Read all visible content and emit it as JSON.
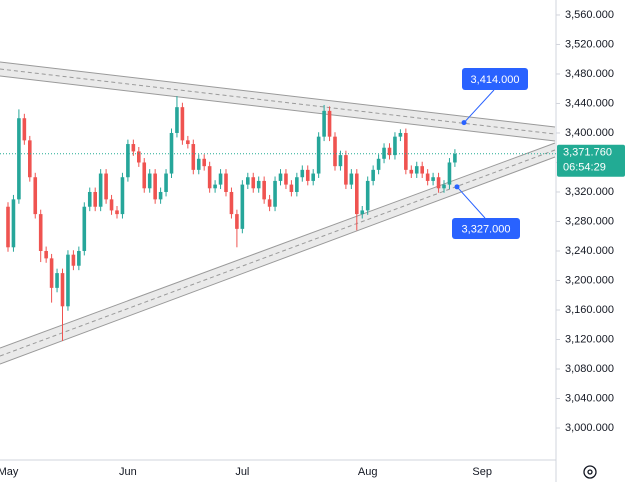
{
  "chart_data": {
    "type": "candlestick",
    "categories": [
      "May",
      null,
      null,
      null,
      null,
      null,
      null,
      null,
      null,
      null,
      null,
      null,
      null,
      null,
      null,
      null,
      null,
      null,
      null,
      null,
      null,
      null,
      "Jun",
      null,
      null,
      null,
      null,
      null,
      null,
      null,
      null,
      null,
      null,
      null,
      null,
      null,
      null,
      null,
      null,
      null,
      null,
      null,
      null,
      "Jul",
      null,
      null,
      null,
      null,
      null,
      null,
      null,
      null,
      null,
      null,
      null,
      null,
      null,
      null,
      null,
      null,
      null,
      null,
      null,
      null,
      null,
      null,
      "Aug",
      null,
      null,
      null,
      null,
      null,
      null,
      null,
      null,
      null,
      null,
      null,
      null,
      null,
      null,
      null,
      null,
      null,
      null,
      null,
      null,
      "Sep"
    ],
    "open": [
      3300,
      3245,
      3310,
      3420,
      3390,
      3340,
      3290,
      3240,
      3230,
      3190,
      3210,
      3165,
      3235,
      3220,
      3240,
      3300,
      3320,
      3300,
      3345,
      3310,
      3295,
      3290,
      3340,
      3385,
      3375,
      3360,
      3325,
      3345,
      3310,
      3320,
      3345,
      3400,
      3435,
      3390,
      3385,
      3350,
      3365,
      3355,
      3325,
      3330,
      3345,
      3320,
      3290,
      3270,
      3330,
      3340,
      3325,
      3335,
      3310,
      3300,
      3335,
      3345,
      3330,
      3320,
      3340,
      3350,
      3335,
      3345,
      3395,
      3430,
      3395,
      3355,
      3370,
      3330,
      3345,
      3290,
      3295,
      3335,
      3350,
      3365,
      3380,
      3370,
      3395,
      3400,
      3350,
      3345,
      3355,
      3345,
      3335,
      3340,
      3325,
      3330,
      3360,
      null,
      null,
      null,
      null,
      null
    ],
    "high": [
      3306,
      3316,
      3432,
      3426,
      3396,
      3346,
      3296,
      3246,
      3236,
      3216,
      3216,
      3241,
      3241,
      3246,
      3306,
      3326,
      3326,
      3351,
      3351,
      3316,
      3301,
      3346,
      3391,
      3391,
      3381,
      3366,
      3351,
      3351,
      3326,
      3351,
      3406,
      3450,
      3441,
      3396,
      3391,
      3371,
      3371,
      3361,
      3336,
      3351,
      3351,
      3326,
      3296,
      3336,
      3346,
      3346,
      3341,
      3341,
      3316,
      3341,
      3351,
      3351,
      3336,
      3346,
      3356,
      3356,
      3351,
      3401,
      3438,
      3436,
      3401,
      3376,
      3376,
      3351,
      3351,
      3301,
      3341,
      3356,
      3371,
      3386,
      3386,
      3401,
      3405,
      3406,
      3356,
      3361,
      3361,
      3351,
      3346,
      3346,
      3336,
      3366,
      3378,
      null,
      null,
      null,
      null,
      null
    ],
    "low": [
      3239,
      3239,
      3304,
      3384,
      3334,
      3284,
      3225,
      3224,
      3170,
      3184,
      3118,
      3159,
      3214,
      3214,
      3234,
      3294,
      3294,
      3294,
      3304,
      3289,
      3284,
      3284,
      3334,
      3369,
      3354,
      3319,
      3319,
      3304,
      3304,
      3314,
      3339,
      3394,
      3384,
      3379,
      3344,
      3344,
      3349,
      3319,
      3319,
      3324,
      3314,
      3284,
      3245,
      3264,
      3324,
      3319,
      3319,
      3304,
      3294,
      3294,
      3329,
      3324,
      3314,
      3314,
      3334,
      3329,
      3329,
      3339,
      3389,
      3389,
      3349,
      3349,
      3324,
      3324,
      3268,
      3284,
      3289,
      3329,
      3344,
      3359,
      3364,
      3364,
      3389,
      3344,
      3339,
      3339,
      3339,
      3329,
      3329,
      3319,
      3319,
      3324,
      3354,
      null,
      null,
      null,
      null,
      null
    ],
    "close": [
      3245,
      3310,
      3420,
      3390,
      3340,
      3290,
      3240,
      3230,
      3190,
      3210,
      3165,
      3235,
      3220,
      3240,
      3300,
      3320,
      3300,
      3345,
      3310,
      3295,
      3290,
      3340,
      3385,
      3375,
      3360,
      3325,
      3345,
      3310,
      3320,
      3345,
      3400,
      3435,
      3390,
      3385,
      3350,
      3365,
      3355,
      3325,
      3330,
      3345,
      3320,
      3290,
      3270,
      3330,
      3340,
      3325,
      3335,
      3310,
      3300,
      3335,
      3345,
      3330,
      3320,
      3340,
      3350,
      3335,
      3345,
      3395,
      3430,
      3395,
      3355,
      3370,
      3330,
      3345,
      3290,
      3295,
      3335,
      3350,
      3365,
      3380,
      3370,
      3395,
      3400,
      3350,
      3345,
      3355,
      3345,
      3335,
      3340,
      3325,
      3330,
      3360,
      3371.76,
      null,
      null,
      null,
      null,
      null
    ],
    "up_color": "#26a69a",
    "down_color": "#ef5350",
    "ylim": [
      2956.6,
      3580.3
    ],
    "yticks": [
      {
        "value": 3000,
        "label": "3,000.000"
      },
      {
        "value": 3040,
        "label": "3,040.000"
      },
      {
        "value": 3080,
        "label": "3,080.000"
      },
      {
        "value": 3120,
        "label": "3,120.000"
      },
      {
        "value": 3160,
        "label": "3,160.000"
      },
      {
        "value": 3200,
        "label": "3,200.000"
      },
      {
        "value": 3240,
        "label": "3,240.000"
      },
      {
        "value": 3280,
        "label": "3,280.000"
      },
      {
        "value": 3320,
        "label": "3,320.000"
      },
      {
        "value": 3360,
        "label": "3,360.000"
      },
      {
        "value": 3400,
        "label": "3,400.000"
      },
      {
        "value": 3440,
        "label": "3,440.000"
      },
      {
        "value": 3480,
        "label": "3,480.000"
      },
      {
        "value": 3520,
        "label": "3,520.000"
      },
      {
        "value": 3560,
        "label": "3,560.000"
      }
    ],
    "last_price": {
      "label": "3,371.760",
      "countdown": "06:54:29"
    },
    "annotations": [
      {
        "value": 3414,
        "label": "3,414.000"
      },
      {
        "value": 3327,
        "label": "3,327.000"
      }
    ]
  }
}
